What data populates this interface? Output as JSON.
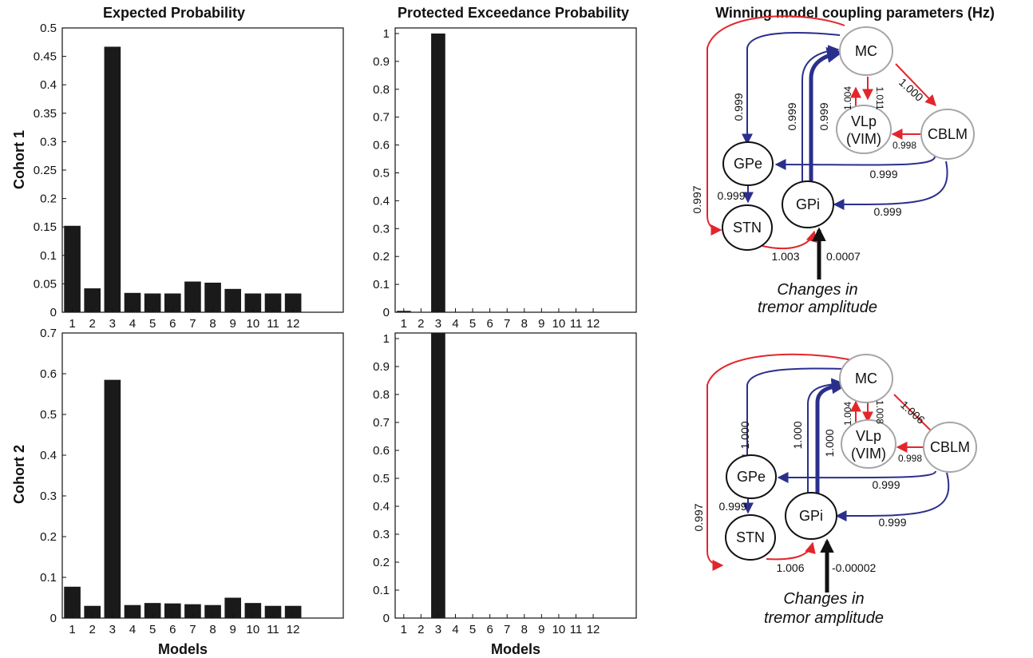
{
  "titles": {
    "expected": "Expected Probability",
    "protected": "Protected Exceedance Probability",
    "coupling": "Winning model coupling parameters (Hz)"
  },
  "rows": [
    "Cohort 1",
    "Cohort 2"
  ],
  "xlabel": "Models",
  "colors": {
    "bar": "#1a1a1a",
    "red": "#e3262c",
    "blue": "#2b2f8c",
    "gray_node": "#a6a6a6",
    "black_node": "#111111"
  },
  "chart_data": [
    {
      "type": "bar",
      "title": "Expected Probability",
      "row": "Cohort 1",
      "xlabel": "",
      "ylabel": "",
      "categories": [
        "1",
        "2",
        "3",
        "4",
        "5",
        "6",
        "7",
        "8",
        "9",
        "10",
        "11",
        "12"
      ],
      "values": [
        0.152,
        0.042,
        0.467,
        0.034,
        0.033,
        0.033,
        0.054,
        0.052,
        0.041,
        0.033,
        0.033,
        0.033
      ],
      "ylim": [
        0,
        0.5
      ],
      "yticks": [
        "0",
        "0.05",
        "0.1",
        "0.15",
        "0.2",
        "0.25",
        "0.3",
        "0.35",
        "0.4",
        "0.45",
        "0.5"
      ],
      "grid": false
    },
    {
      "type": "bar",
      "title": "Protected Exceedance Probability",
      "row": "Cohort 1",
      "xlabel": "",
      "ylabel": "",
      "categories": [
        "1",
        "2",
        "3",
        "4",
        "5",
        "6",
        "7",
        "8",
        "9",
        "10",
        "11",
        "12"
      ],
      "values": [
        0.005,
        0.0,
        1.0,
        0.0,
        0.0,
        0.0,
        0.0,
        0.0,
        0.0,
        0.0,
        0.0,
        0.0
      ],
      "ylim": [
        0,
        1.02
      ],
      "yticks": [
        "0",
        "0.1",
        "0.2",
        "0.3",
        "0.4",
        "0.5",
        "0.6",
        "0.7",
        "0.8",
        "0.9",
        "1"
      ],
      "grid": false
    },
    {
      "type": "bar",
      "title": "",
      "row": "Cohort 2",
      "xlabel": "Models",
      "ylabel": "",
      "categories": [
        "1",
        "2",
        "3",
        "4",
        "5",
        "6",
        "7",
        "8",
        "9",
        "10",
        "11",
        "12"
      ],
      "values": [
        0.077,
        0.03,
        0.585,
        0.032,
        0.037,
        0.036,
        0.034,
        0.032,
        0.05,
        0.037,
        0.03,
        0.03
      ],
      "ylim": [
        0,
        0.7
      ],
      "yticks": [
        "0",
        "0.1",
        "0.2",
        "0.3",
        "0.4",
        "0.5",
        "0.6",
        "0.7"
      ],
      "grid": false
    },
    {
      "type": "bar",
      "title": "",
      "row": "Cohort 2",
      "xlabel": "Models",
      "ylabel": "",
      "categories": [
        "1",
        "2",
        "3",
        "4",
        "5",
        "6",
        "7",
        "8",
        "9",
        "10",
        "11",
        "12"
      ],
      "values": [
        0.0,
        0.0,
        1.02,
        0.0,
        0.0,
        0.0,
        0.0,
        0.0,
        0.0,
        0.0,
        0.0,
        0.0
      ],
      "ylim": [
        0,
        1.02
      ],
      "yticks": [
        "0",
        "0.1",
        "0.2",
        "0.3",
        "0.4",
        "0.5",
        "0.6",
        "0.7",
        "0.8",
        "0.9",
        "1"
      ],
      "grid": false
    }
  ],
  "diagrams": [
    {
      "nodes": {
        "mc": "MC",
        "vlp1": "VLp",
        "vlp2": "(VIM)",
        "cblm": "CBLM",
        "gpe": "GPe",
        "gpi": "GPi",
        "stn": "STN"
      },
      "edges": {
        "mc_cblm": "1.000",
        "vlp_mc": "1.004",
        "mc_vlp": "1.011",
        "cblm_vlp": "0.998",
        "mc_gpe": "0.999",
        "gpi_mc_a": "0.999",
        "gpi_mc_b": "0.999",
        "cblm_gpe": "0.999",
        "cblm_gpi": "0.999",
        "mc_stn": "0.997",
        "gpe_stn": "0.999",
        "stn_gpi": "1.003",
        "input": "0.0007"
      },
      "caption1": "Changes in",
      "caption2": "tremor amplitude"
    },
    {
      "nodes": {
        "mc": "MC",
        "vlp1": "VLp",
        "vlp2": "(VIM)",
        "cblm": "CBLM",
        "gpe": "GPe",
        "gpi": "GPi",
        "stn": "STN"
      },
      "edges": {
        "mc_cblm": "1.006",
        "vlp_mc": "1.004",
        "mc_vlp": "1.008",
        "cblm_vlp": "0.998",
        "mc_gpe": "1.000",
        "gpi_mc_a": "1.000",
        "gpi_mc_b": "1.000",
        "cblm_gpe": "0.999",
        "cblm_gpi": "0.999",
        "mc_stn": "0.997",
        "gpe_stn": "0.999",
        "stn_gpi": "1.006",
        "input": "-0.00002"
      },
      "caption1": "Changes in",
      "caption2": "tremor amplitude"
    }
  ]
}
